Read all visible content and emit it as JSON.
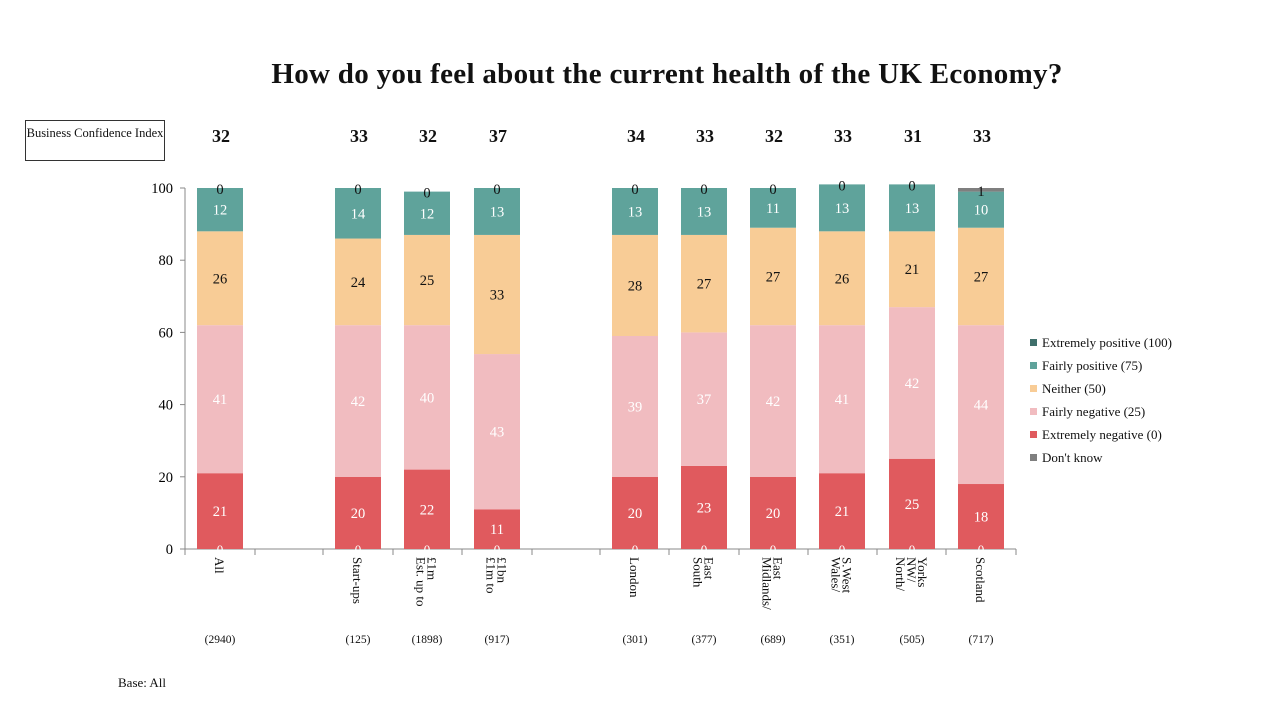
{
  "title": "How do you feel about the current health of the UK Economy?",
  "bci_label": "Business Confidence Index",
  "base_note": "Base: All",
  "colors": {
    "extremely_positive": "#3f6f6b",
    "fairly_positive": "#5fa39b",
    "neither": "#f8cc96",
    "fairly_negative": "#f1bcc0",
    "extremely_negative": "#e05a5e",
    "dont_know": "#7f7f7f"
  },
  "chart_data": {
    "type": "bar",
    "stacked": true,
    "ylim": [
      0,
      100
    ],
    "yticks": [
      0,
      20,
      40,
      60,
      80,
      100
    ],
    "legend_position": "right",
    "grid": false,
    "categories": [
      {
        "label": "All",
        "base": "(2940)",
        "bci": "32",
        "gap_before": false
      },
      {
        "label": "Start-ups",
        "base": "(125)",
        "bci": "33",
        "gap_before": true
      },
      {
        "label": "Est. up to £1m",
        "base": "(1898)",
        "bci": "32",
        "gap_before": false
      },
      {
        "label": "£1m to £1bn",
        "base": "(917)",
        "bci": "37",
        "gap_before": false
      },
      {
        "label": "London",
        "base": "(301)",
        "bci": "34",
        "gap_before": true
      },
      {
        "label": "South East",
        "base": "(377)",
        "bci": "33",
        "gap_before": false
      },
      {
        "label": "Midlands/ East",
        "base": "(689)",
        "bci": "32",
        "gap_before": false
      },
      {
        "label": "Wales/ S.West",
        "base": "(351)",
        "bci": "33",
        "gap_before": false
      },
      {
        "label": "North/ NW/ Yorks",
        "base": "(505)",
        "bci": "31",
        "gap_before": false
      },
      {
        "label": "Scotland",
        "base": "(717)",
        "bci": "33",
        "gap_before": false
      }
    ],
    "series": [
      {
        "name": "Extremely negative (0)",
        "key": "extremely_negative",
        "values": [
          21,
          20,
          22,
          11,
          20,
          23,
          20,
          21,
          25,
          18
        ],
        "label_color": "#ffffff"
      },
      {
        "name": "Fairly negative (25)",
        "key": "fairly_negative",
        "values": [
          41,
          42,
          40,
          43,
          39,
          37,
          42,
          41,
          42,
          44
        ],
        "label_color": "#ffffff"
      },
      {
        "name": "Neither (50)",
        "key": "neither",
        "values": [
          26,
          24,
          25,
          33,
          28,
          27,
          27,
          26,
          21,
          27
        ],
        "label_color": "#111111"
      },
      {
        "name": "Fairly positive (75)",
        "key": "fairly_positive",
        "values": [
          12,
          14,
          12,
          13,
          13,
          13,
          11,
          13,
          13,
          10
        ],
        "label_color": "#ffffff"
      },
      {
        "name": "Extremely positive (100)",
        "key": "extremely_positive",
        "values": [
          0,
          0,
          0,
          0,
          0,
          0,
          0,
          0,
          0,
          0
        ],
        "label_color": "#111111"
      },
      {
        "name": "Don't know",
        "key": "dont_know",
        "values": [
          0,
          0,
          0,
          0,
          0,
          0,
          0,
          0,
          0,
          1
        ],
        "label_color": "#111111"
      }
    ],
    "zero_labels": [
      "0",
      "0",
      "0",
      "0",
      "0",
      "0",
      "0",
      "0",
      "0",
      "0"
    ],
    "legend_order": [
      "extremely_positive",
      "fairly_positive",
      "neither",
      "fairly_negative",
      "extremely_negative",
      "dont_know"
    ]
  }
}
